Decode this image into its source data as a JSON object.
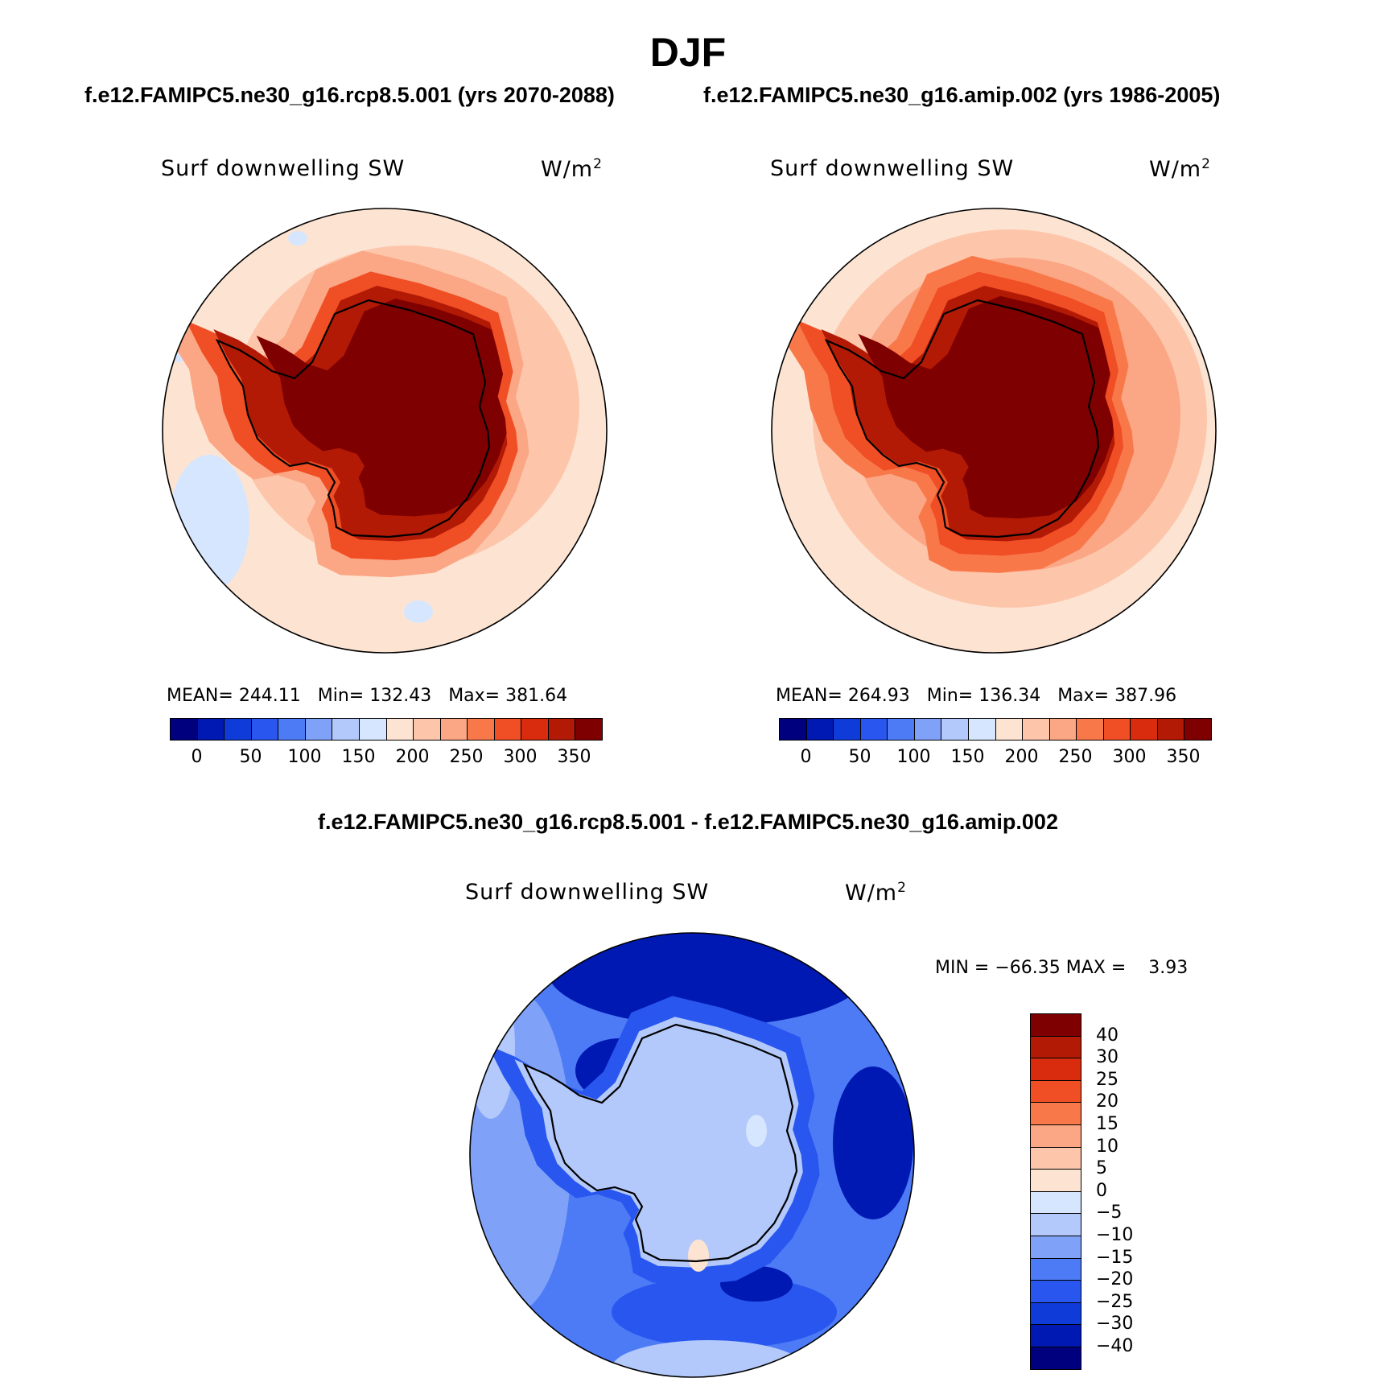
{
  "figure": {
    "title": "DJF",
    "subtitle_left": "f.e12.FAMIPC5.ne30_g16.rcp8.5.001 (yrs 2070-2088)",
    "subtitle_right": "f.e12.FAMIPC5.ne30_g16.amip.002 (yrs 1986-2005)",
    "diff_title": "f.e12.FAMIPC5.ne30_g16.rcp8.5.001 - f.e12.FAMIPC5.ne30_g16.amip.002"
  },
  "panels": [
    {
      "variable": "Surf downwelling SW",
      "units": "W/m",
      "units_sup": "2",
      "stats": "MEAN= 244.11   Min= 132.43   Max= 381.64"
    },
    {
      "variable": "Surf downwelling SW",
      "units": "W/m",
      "units_sup": "2",
      "stats": "MEAN= 264.93   Min= 136.34   Max= 387.96"
    },
    {
      "variable": "Surf downwelling SW",
      "units": "W/m",
      "units_sup": "2",
      "stats": "MIN = −66.35 MAX =    3.93"
    }
  ],
  "colorbar_abs": {
    "colors": [
      "#00007f",
      "#0019b2",
      "#0f3bd9",
      "#2856ef",
      "#4d7bf6",
      "#7fa2f8",
      "#b3c9fb",
      "#d6e6fe",
      "#fde4d2",
      "#fdc6ab",
      "#fba684",
      "#f8784a",
      "#f04e24",
      "#d92c0f",
      "#b21a06",
      "#7f0000"
    ],
    "ticks": [
      "0",
      "50",
      "100",
      "150",
      "200",
      "250",
      "300",
      "350"
    ]
  },
  "colorbar_diff": {
    "colors": [
      "#7f0000",
      "#b21a06",
      "#d92c0f",
      "#f04e24",
      "#f8784a",
      "#fba684",
      "#fdc6ab",
      "#fde4d2",
      "#d6e6fe",
      "#b3c9fb",
      "#7fa2f8",
      "#4d7bf6",
      "#2856ef",
      "#0f3bd9",
      "#0019b2",
      "#00007f"
    ],
    "ticks": [
      "40",
      "30",
      "25",
      "20",
      "15",
      "10",
      "5",
      "0",
      "−5",
      "−10",
      "−15",
      "−20",
      "−25",
      "−30",
      "−40"
    ]
  }
}
